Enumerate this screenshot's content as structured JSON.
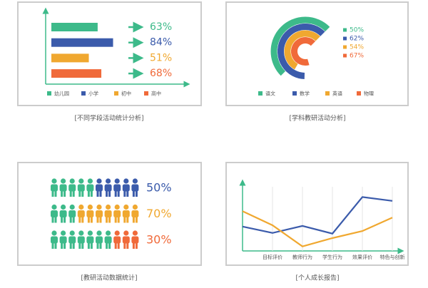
{
  "chart_data": [
    {
      "type": "hbar",
      "title": "[不同学段活动统计分析]",
      "categories": [
        "幼儿园",
        "小学",
        "初中",
        "高中"
      ],
      "values": [
        63,
        84,
        51,
        68
      ],
      "value_labels": [
        "63%",
        "84%",
        "51%",
        "68%"
      ],
      "colors": [
        "#3dba8a",
        "#3b5bab",
        "#f0a830",
        "#f06a3a"
      ],
      "xlim": [
        0,
        100
      ]
    },
    {
      "type": "radial_bar",
      "title": "[学科教研活动分析]",
      "categories": [
        "语文",
        "数学",
        "英语",
        "物理"
      ],
      "values": [
        50,
        62,
        54,
        67
      ],
      "value_labels": [
        "50%",
        "62%",
        "54%",
        "67%"
      ],
      "colors": [
        "#3dba8a",
        "#3b5bab",
        "#f0a830",
        "#f06a3a"
      ],
      "rlim": [
        0,
        100
      ]
    },
    {
      "type": "pictogram",
      "title": "[教研活动数据统计]",
      "values": [
        50,
        70,
        30
      ],
      "value_labels": [
        "50%",
        "70%",
        "30%"
      ],
      "colors": [
        "#3b5bab",
        "#f0a830",
        "#f06a3a"
      ],
      "base_color": "#3dba8a",
      "xlim": [
        0,
        100
      ]
    },
    {
      "type": "line",
      "title": "[个人成长报告]",
      "categories": [
        null,
        "目标评价",
        "教师行为",
        "学生行为",
        "效果评价",
        "特色与创新"
      ],
      "series": [
        {
          "color": "#3b5bab",
          "values": [
            38,
            28,
            39,
            27,
            84,
            78
          ]
        },
        {
          "color": "#f0a830",
          "values": [
            62,
            40,
            7,
            20,
            31,
            52
          ]
        }
      ],
      "ylim": [
        0,
        100
      ],
      "grid": true
    }
  ]
}
